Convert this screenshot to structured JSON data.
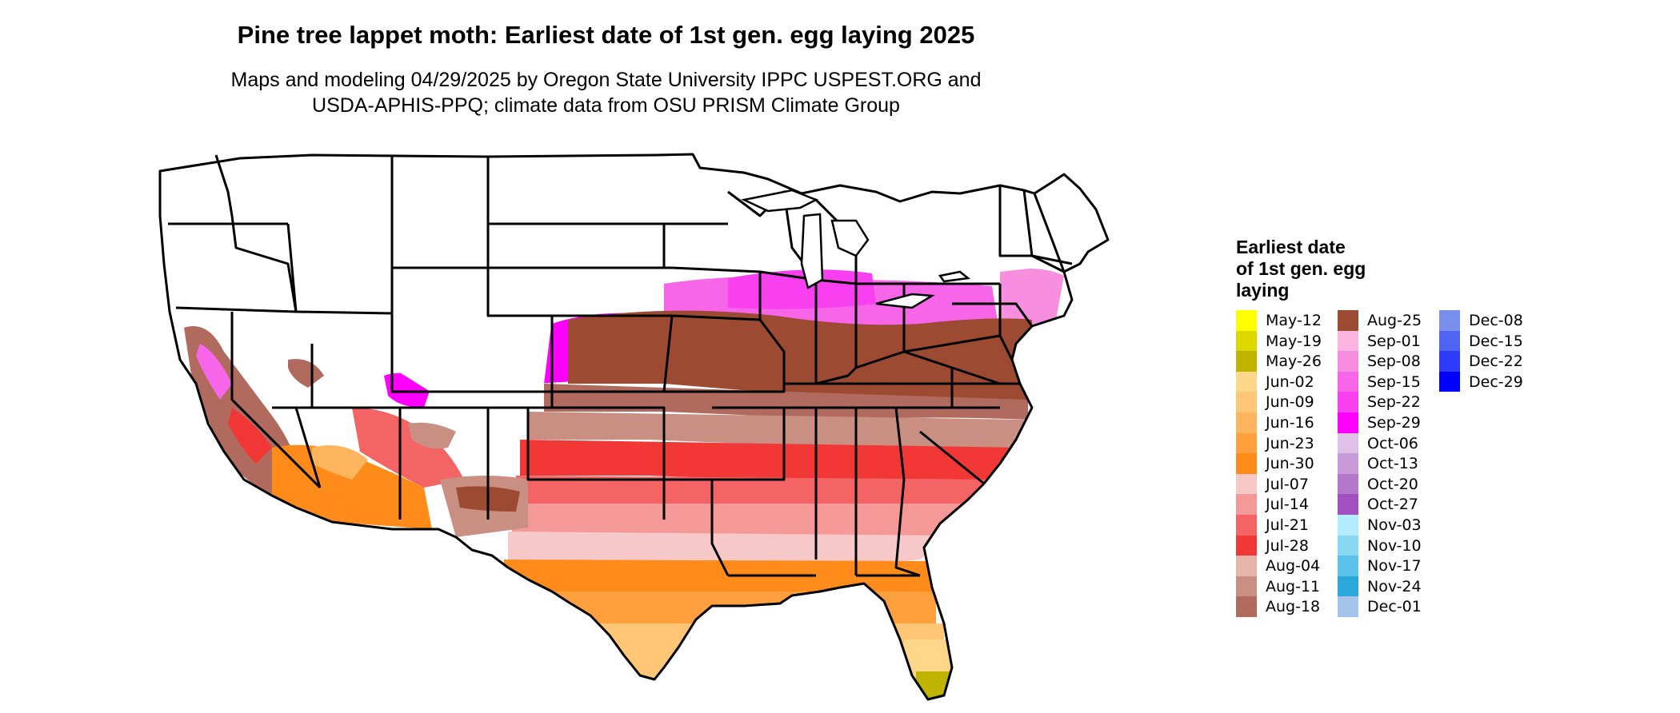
{
  "title": "Pine tree lappet moth: Earliest date of 1st gen. egg laying 2025",
  "subtitle_lines": [
    "Maps and modeling 04/29/2025 by Oregon State University IPPC USPEST.ORG and",
    "USDA-APHIS-PPQ; climate data from OSU PRISM Climate Group"
  ],
  "legend": {
    "title_lines": [
      "Earliest date",
      "of 1st gen. egg",
      "laying"
    ],
    "items": [
      {
        "label": "May-12",
        "color": "#ffff00"
      },
      {
        "label": "May-19",
        "color": "#dcd800"
      },
      {
        "label": "May-26",
        "color": "#bfb400"
      },
      {
        "label": "Jun-02",
        "color": "#ffd68a"
      },
      {
        "label": "Jun-09",
        "color": "#ffc675"
      },
      {
        "label": "Jun-16",
        "color": "#ffb45e"
      },
      {
        "label": "Jun-23",
        "color": "#ff9f3d"
      },
      {
        "label": "Jun-30",
        "color": "#ff8c1a"
      },
      {
        "label": "Jul-07",
        "color": "#f7c8c8"
      },
      {
        "label": "Jul-14",
        "color": "#f49898"
      },
      {
        "label": "Jul-21",
        "color": "#f46464"
      },
      {
        "label": "Jul-28",
        "color": "#f23737"
      },
      {
        "label": "Aug-04",
        "color": "#e8b3a8"
      },
      {
        "label": "Aug-11",
        "color": "#c98f82"
      },
      {
        "label": "Aug-18",
        "color": "#b06b5e"
      },
      {
        "label": "Aug-25",
        "color": "#9c4a32"
      },
      {
        "label": "Sep-01",
        "color": "#f9b4e0"
      },
      {
        "label": "Sep-08",
        "color": "#f78ee0"
      },
      {
        "label": "Sep-15",
        "color": "#f766e8"
      },
      {
        "label": "Sep-22",
        "color": "#f940f0"
      },
      {
        "label": "Sep-29",
        "color": "#ff00ff"
      },
      {
        "label": "Oct-06",
        "color": "#e0c0e8"
      },
      {
        "label": "Oct-13",
        "color": "#c89ad8"
      },
      {
        "label": "Oct-20",
        "color": "#b478cc"
      },
      {
        "label": "Oct-27",
        "color": "#a050c0"
      },
      {
        "label": "Nov-03",
        "color": "#b4ecff"
      },
      {
        "label": "Nov-10",
        "color": "#88d8f4"
      },
      {
        "label": "Nov-17",
        "color": "#5cc4ec"
      },
      {
        "label": "Nov-24",
        "color": "#2aa8dc"
      },
      {
        "label": "Dec-01",
        "color": "#a4c4ec"
      },
      {
        "label": "Dec-08",
        "color": "#7890ec"
      },
      {
        "label": "Dec-15",
        "color": "#5064f4"
      },
      {
        "label": "Dec-22",
        "color": "#2c3cf8"
      },
      {
        "label": "Dec-29",
        "color": "#0000ff"
      }
    ]
  }
}
